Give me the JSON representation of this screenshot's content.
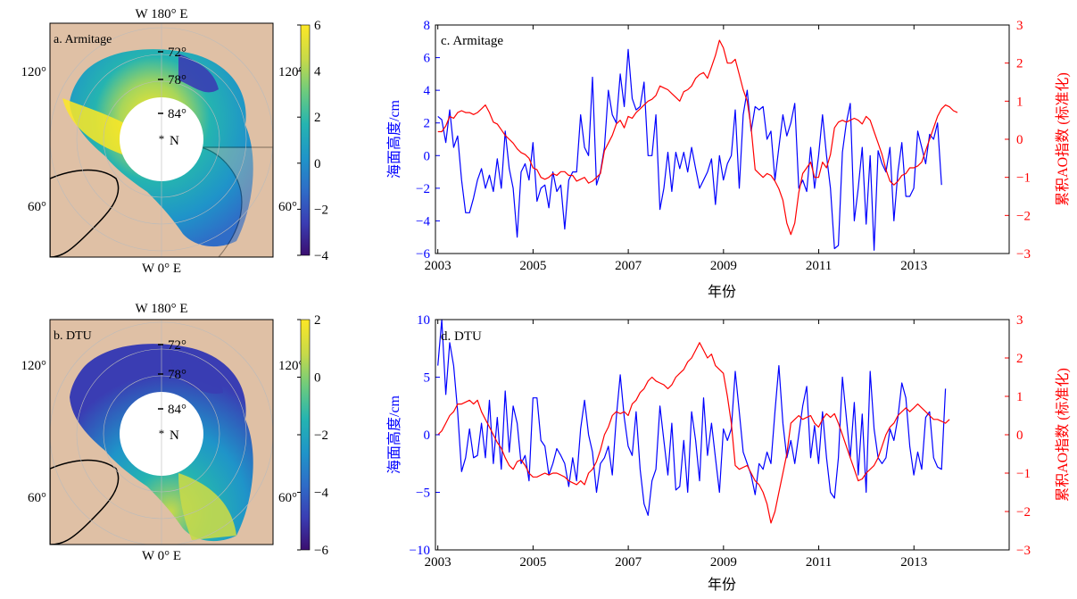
{
  "colors": {
    "ocean_blue": "#1f5fd6",
    "ssh_line": "#0000ff",
    "ao_line": "#ff0000",
    "land": "#dfc0a5",
    "colormap": [
      "#3b0f70",
      "#3a3db3",
      "#2f6cc7",
      "#1f94c9",
      "#25b4b0",
      "#6ccb7e",
      "#c6d94a",
      "#fde725"
    ]
  },
  "maps": [
    {
      "panel_label": "a. Armitage",
      "top_label": "W 180° E",
      "bottom_label": "W 0° E",
      "left_label_upper": "120°",
      "left_label_lower": "60°",
      "right_label_upper": "120°",
      "right_label_lower": "60°",
      "lat_labels": [
        "72°",
        "78°",
        "84°"
      ],
      "pole_label": "N",
      "colorbar_ticks": [
        "6",
        "4",
        "2",
        "0",
        "−2",
        "−4"
      ]
    },
    {
      "panel_label": "b. DTU",
      "top_label": "W 180° E",
      "bottom_label": "W 0° E",
      "left_label_upper": "120°",
      "left_label_lower": "60°",
      "right_label_upper": "120°",
      "right_label_lower": "60°",
      "lat_labels": [
        "72°",
        "78°",
        "84°"
      ],
      "pole_label": "N",
      "colorbar_ticks": [
        "2",
        "0",
        "−2",
        "−4",
        "−6"
      ]
    }
  ],
  "chart_data": [
    {
      "type": "line",
      "panel_label": "c. Armitage",
      "xlabel": "年份",
      "ylabel": "海面高度/cm",
      "ylabel_right": "累积AO指数 (标准化)",
      "xlim": [
        2002.95,
        2015.0
      ],
      "ylim": [
        -6,
        8
      ],
      "ylim_right": [
        -3,
        3
      ],
      "x_ticks": [
        2003,
        2005,
        2007,
        2009,
        2011,
        2013
      ],
      "y_ticks": [
        -6,
        -4,
        -2,
        0,
        2,
        4,
        6,
        8
      ],
      "y_ticks_right": [
        -3,
        -2,
        -1,
        0,
        1,
        2,
        3
      ],
      "series": [
        {
          "axis": "left",
          "color": "#0000ff",
          "x_start": 2003.0,
          "x_step": 0.0833,
          "values": [
            2.4,
            2.2,
            0.8,
            2.8,
            0.5,
            1.2,
            -1.5,
            -3.5,
            -3.5,
            -2.6,
            -1.5,
            -0.8,
            -2.0,
            -1.2,
            -2.2,
            -0.2,
            -2.0,
            1.5,
            -0.8,
            -2.0,
            -5.0,
            -1.0,
            -0.5,
            -1.5,
            0.8,
            -2.8,
            -2.0,
            -1.8,
            -3.2,
            -1.0,
            -2.2,
            -1.8,
            -4.5,
            -1.5,
            -1.0,
            -1.0,
            2.5,
            0.5,
            0.0,
            4.8,
            -1.8,
            -1.0,
            0.5,
            4.0,
            2.5,
            2.0,
            5.0,
            3.0,
            6.5,
            3.5,
            2.8,
            3.0,
            4.5,
            0.0,
            0.0,
            2.5,
            -3.3,
            -2.0,
            0.2,
            -2.2,
            0.2,
            -0.8,
            0.2,
            -1.0,
            0.5,
            -0.8,
            -2.0,
            -1.5,
            -1.0,
            -0.2,
            -3.0,
            0.0,
            -1.5,
            -0.5,
            0.0,
            2.8,
            -2.0,
            2.5,
            4.0,
            1.5,
            3.0,
            2.8,
            3.0,
            1.0,
            1.5,
            -1.5,
            0.5,
            2.5,
            1.2,
            2.0,
            3.2,
            -2.0,
            -1.5,
            -2.2,
            0.5,
            -2.0,
            0.0,
            2.5,
            0.0,
            -2.0,
            -5.7,
            -5.5,
            0.2,
            2.0,
            3.2,
            -4.0,
            -2.0,
            0.5,
            -4.2,
            0.0,
            -5.8,
            0.3,
            -0.5,
            -1.0,
            0.5,
            -4.0,
            -1.0,
            0.8,
            -2.5,
            -2.5,
            -2.0,
            1.5,
            0.5,
            -0.5,
            1.3,
            1.0,
            2.0,
            -1.8
          ]
        },
        {
          "axis": "right",
          "color": "#ff0000",
          "x_start": 2003.0,
          "x_step": 0.0833,
          "values": [
            0.2,
            0.2,
            0.35,
            0.6,
            0.55,
            0.7,
            0.75,
            0.7,
            0.7,
            0.65,
            0.7,
            0.8,
            0.9,
            0.7,
            0.45,
            0.4,
            0.25,
            0.1,
            0.0,
            -0.1,
            -0.25,
            -0.35,
            -0.4,
            -0.5,
            -0.75,
            -0.8,
            -1.0,
            -1.05,
            -1.0,
            -0.9,
            -0.95,
            -0.85,
            -0.85,
            -0.95,
            -0.95,
            -1.1,
            -1.05,
            -1.0,
            -1.15,
            -1.1,
            -1.0,
            -0.9,
            -0.3,
            -0.1,
            0.1,
            0.4,
            0.5,
            0.3,
            0.6,
            0.55,
            0.7,
            0.8,
            0.9,
            1.0,
            1.05,
            1.15,
            1.4,
            1.35,
            1.3,
            1.2,
            1.1,
            1.0,
            1.25,
            1.3,
            1.4,
            1.6,
            1.7,
            1.75,
            1.6,
            1.9,
            2.2,
            2.6,
            2.4,
            2.0,
            2.0,
            2.1,
            1.7,
            1.3,
            1.0,
            0.3,
            -0.8,
            -0.9,
            -1.0,
            -0.9,
            -0.95,
            -1.1,
            -1.3,
            -1.6,
            -2.2,
            -2.5,
            -2.2,
            -1.4,
            -0.9,
            -0.75,
            -0.6,
            -1.0,
            -1.0,
            -0.6,
            -0.75,
            -0.4,
            0.3,
            0.45,
            0.5,
            0.45,
            0.5,
            0.55,
            0.5,
            0.4,
            0.6,
            0.5,
            0.2,
            -0.1,
            -0.4,
            -0.8,
            -1.1,
            -1.2,
            -1.1,
            -0.95,
            -0.9,
            -0.75,
            -0.75,
            -0.7,
            -0.6,
            -0.3,
            0.0,
            0.3,
            0.6,
            0.8,
            0.9,
            0.85,
            0.75,
            0.7
          ]
        }
      ]
    },
    {
      "type": "line",
      "panel_label": "d. DTU",
      "xlabel": "年份",
      "ylabel": "海面高度/cm",
      "ylabel_right": "累积AO指数 (标准化)",
      "xlim": [
        2002.95,
        2015.0
      ],
      "ylim": [
        -10,
        10
      ],
      "ylim_right": [
        -3,
        3
      ],
      "x_ticks": [
        2003,
        2005,
        2007,
        2009,
        2011,
        2013
      ],
      "y_ticks": [
        -10,
        -5,
        0,
        5,
        10
      ],
      "y_ticks_right": [
        -3,
        -2,
        -1,
        0,
        1,
        2,
        3
      ],
      "series": [
        {
          "axis": "left",
          "color": "#0000ff",
          "x_start": 2003.0,
          "x_step": 0.0833,
          "values": [
            6.0,
            10.0,
            3.5,
            8.0,
            6.0,
            2.0,
            -3.2,
            -2.0,
            0.5,
            -2.0,
            -1.8,
            1.0,
            -2.0,
            3.0,
            -2.5,
            1.5,
            -3.0,
            3.8,
            -1.5,
            2.5,
            1.0,
            -2.5,
            -1.8,
            -4.0,
            3.2,
            3.2,
            -0.5,
            -1.0,
            -3.5,
            -2.5,
            -1.2,
            -1.8,
            -2.5,
            -4.5,
            -2.0,
            -4.0,
            0.5,
            3.0,
            0.0,
            -1.5,
            -5.0,
            -2.5,
            -2.0,
            -1.0,
            -3.5,
            1.5,
            5.2,
            1.5,
            -1.0,
            -1.8,
            2.0,
            -3.0,
            -6.0,
            -7.0,
            -4.0,
            -3.0,
            2.5,
            -0.5,
            -3.5,
            1.0,
            -4.8,
            -4.5,
            -0.5,
            -5.0,
            2.0,
            -0.5,
            -4.0,
            3.2,
            -1.8,
            1.0,
            -2.0,
            -5.0,
            0.5,
            -0.5,
            0.5,
            5.5,
            2.0,
            -1.5,
            -2.5,
            -3.5,
            -5.2,
            -2.5,
            -3.0,
            -1.5,
            -2.5,
            2.0,
            6.0,
            1.0,
            -2.0,
            -0.5,
            -2.5,
            0.0,
            2.5,
            4.2,
            -2.0,
            0.8,
            -2.5,
            2.0,
            -2.0,
            -5.0,
            -5.5,
            -2.0,
            5.0,
            1.5,
            -2.0,
            2.8,
            -3.5,
            1.8,
            -5.0,
            5.5,
            0.5,
            -2.0,
            -2.5,
            -2.0,
            0.5,
            -0.5,
            1.5,
            4.5,
            3.2,
            -1.0,
            -3.5,
            -1.5,
            -3.0,
            1.5,
            2.0,
            -2.0,
            -2.8,
            -3.0,
            4.0
          ]
        },
        {
          "axis": "right",
          "color": "#ff0000",
          "x_start": 2003.0,
          "x_step": 0.0833,
          "values": [
            0.0,
            0.1,
            0.3,
            0.5,
            0.6,
            0.8,
            0.8,
            0.85,
            0.9,
            0.8,
            0.9,
            0.6,
            0.4,
            0.2,
            0.0,
            -0.2,
            -0.35,
            -0.6,
            -0.8,
            -0.9,
            -0.7,
            -0.65,
            -0.8,
            -1.0,
            -1.1,
            -1.1,
            -1.05,
            -1.0,
            -1.05,
            -1.0,
            -1.0,
            -1.05,
            -1.1,
            -1.2,
            -1.25,
            -1.3,
            -1.2,
            -1.3,
            -1.0,
            -0.9,
            -0.7,
            -0.4,
            0.0,
            0.2,
            0.5,
            0.6,
            0.55,
            0.6,
            0.5,
            0.8,
            0.9,
            1.1,
            1.2,
            1.4,
            1.5,
            1.4,
            1.35,
            1.3,
            1.2,
            1.3,
            1.5,
            1.6,
            1.7,
            1.9,
            2.0,
            2.2,
            2.4,
            2.2,
            2.0,
            2.1,
            1.8,
            1.7,
            1.6,
            1.0,
            0.3,
            -0.8,
            -0.9,
            -0.85,
            -0.8,
            -1.0,
            -1.2,
            -1.3,
            -1.5,
            -1.8,
            -2.3,
            -2.0,
            -1.5,
            -1.0,
            -0.5,
            0.3,
            0.4,
            0.5,
            0.4,
            0.45,
            0.5,
            0.3,
            0.2,
            0.4,
            0.55,
            0.45,
            0.55,
            0.3,
            0.0,
            -0.3,
            -0.6,
            -0.9,
            -1.2,
            -1.15,
            -1.0,
            -0.9,
            -0.8,
            -0.6,
            -0.3,
            0.0,
            0.2,
            0.3,
            0.5,
            0.6,
            0.7,
            0.6,
            0.7,
            0.8,
            0.7,
            0.6,
            0.5,
            0.4,
            0.4,
            0.35,
            0.3,
            0.4
          ]
        }
      ]
    }
  ]
}
